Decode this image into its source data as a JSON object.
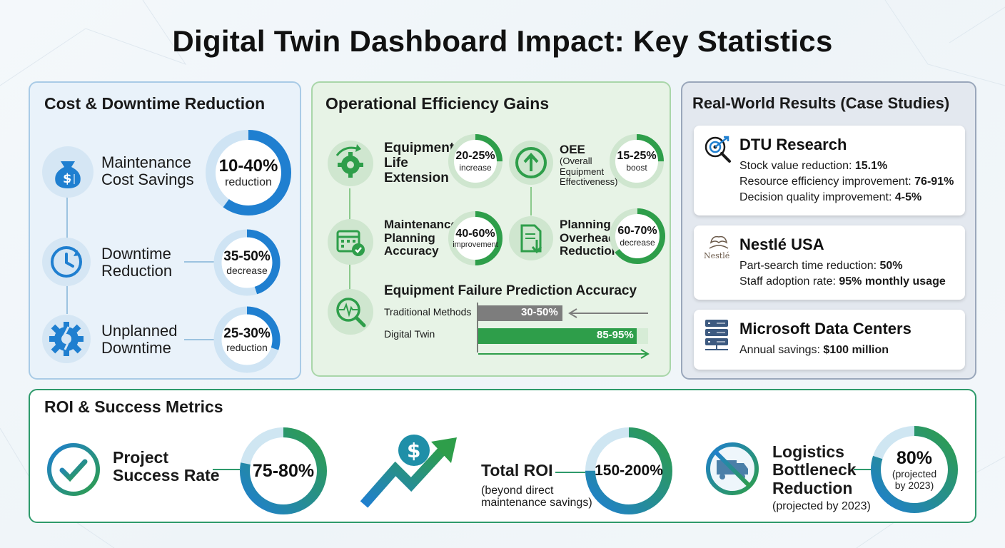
{
  "title": "Digital Twin Dashboard Impact: Key Statistics",
  "colors": {
    "blue": "#1f7fd0",
    "green": "#2e9e4a",
    "gray": "#7d7d7d",
    "teal": "#2e9a6b"
  },
  "cost": {
    "title": "Cost & Downtime Reduction",
    "items": [
      {
        "label_1": "Maintenance",
        "label_2": "Cost Savings",
        "value": "10-40%",
        "unit": "reduction",
        "icon": "money-bag-down-icon",
        "fill": 0.6
      },
      {
        "label_1": "Downtime",
        "label_2": "Reduction",
        "value": "35-50%",
        "unit": "decrease",
        "icon": "clock-refresh-icon",
        "fill": 0.45
      },
      {
        "label_1": "Unplanned",
        "label_2": "Downtime",
        "value": "25-30%",
        "unit": "reduction",
        "icon": "broken-gear-icon",
        "fill": 0.3
      }
    ]
  },
  "ops": {
    "title": "Operational Efficiency Gains",
    "equip_life": {
      "label_1": "Equipment",
      "label_2": "Life",
      "label_3": "Extension",
      "value": "20-25%",
      "unit": "increase"
    },
    "oee": {
      "label_1": "OEE",
      "label_2": "(Overall",
      "label_3": "Equipment",
      "label_4": "Effectiveness)",
      "value": "15-25%",
      "unit": "boost"
    },
    "planning_accuracy": {
      "label_1": "Maintenance",
      "label_2": "Planning",
      "label_3": "Accuracy",
      "value": "40-60%",
      "unit": "improvement"
    },
    "planning_overhead": {
      "label_1": "Planning",
      "label_2": "Overhead",
      "label_3": "Reduction",
      "value": "60-70%",
      "unit": "decrease"
    },
    "failure": {
      "title": "Equipment Failure Prediction Accuracy",
      "traditional_label": "Traditional Methods",
      "traditional_value": "30-50%",
      "twin_label": "Digital Twin",
      "twin_value": "85-95%"
    }
  },
  "real": {
    "title": "Real-World Results (Case Studies)",
    "dtu": {
      "name": "DTU Research",
      "l1_pre": "Stock value reduction: ",
      "l1_val": "15.1%",
      "l2_pre": "Resource efficiency improvement: ",
      "l2_val": "76-91%",
      "l3_pre": "Decision quality improvement: ",
      "l3_val": "4-5%"
    },
    "nestle": {
      "name": "Nestlé USA",
      "logo_text": "Nestlé",
      "l1_pre": "Part-search time reduction: ",
      "l1_val": "50%",
      "l2_pre": "Staff adoption rate: ",
      "l2_val": "95% monthly usage"
    },
    "microsoft": {
      "name": "Microsoft Data Centers",
      "l1_pre": "Annual savings: ",
      "l1_val": "$100 million"
    }
  },
  "roi": {
    "title": "ROI & Success Metrics",
    "success": {
      "label_1": "Project",
      "label_2": "Success Rate",
      "value": "75-80%"
    },
    "total": {
      "label_1": "Total ROI",
      "label_2": "(beyond direct",
      "label_3": "maintenance savings)",
      "value": "150-200%"
    },
    "logistics": {
      "label_1": "Logistics",
      "label_2": "Bottleneck",
      "label_3": "Reduction",
      "label_4": "(projected by 2023)",
      "value": "80%",
      "sub_1": "(projected",
      "sub_2": "by 2023)"
    }
  }
}
